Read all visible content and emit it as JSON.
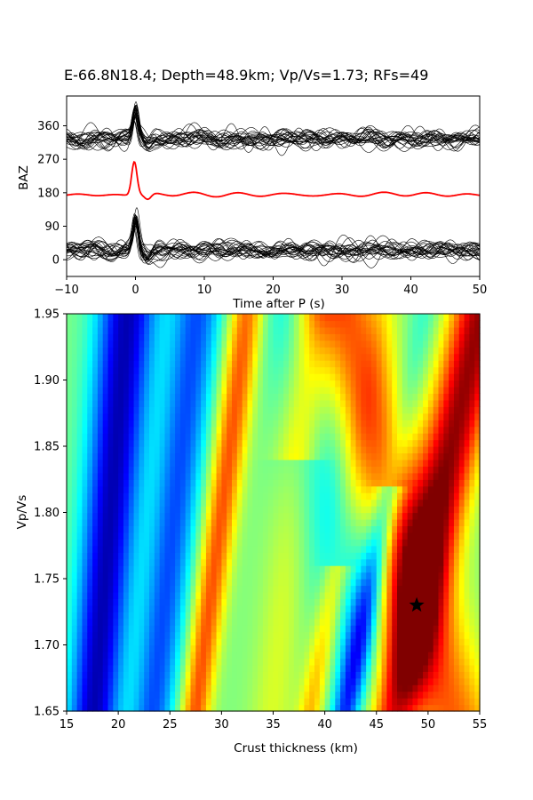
{
  "chart_data": [
    {
      "type": "line",
      "title": "E-66.8N18.4; Depth=48.9km; Vp/Vs=1.73; RFs=49",
      "xlabel": "Time after P (s)",
      "ylabel": "BAZ",
      "xlim": [
        -10,
        50
      ],
      "ylim": [
        -45,
        440
      ],
      "x_ticks": [
        -10,
        0,
        10,
        20,
        30,
        40,
        50
      ],
      "y_ticks": [
        0,
        90,
        180,
        270,
        360
      ],
      "traces": [
        {
          "name": "",
          "count": 24,
          "baseline": 325,
          "pulse_time": 0,
          "pulse_amplitude": 75,
          "color": "#000000"
        },
        {
          "name": "",
          "count": 1,
          "baseline": 175,
          "pulse_time": 0,
          "pulse_amplitude": 90,
          "color": "#ff0000"
        },
        {
          "name": "",
          "count": 24,
          "baseline": 25,
          "pulse_time": 0,
          "pulse_amplitude": 95,
          "color": "#000000"
        }
      ],
      "grid": false
    },
    {
      "type": "heatmap",
      "xlabel": "Crust thickness (km)",
      "ylabel": "Vp/Vs",
      "xlim": [
        15,
        55
      ],
      "ylim": [
        1.65,
        1.95
      ],
      "x_ticks": [
        15,
        20,
        25,
        30,
        35,
        40,
        45,
        50,
        55
      ],
      "y_ticks": [
        1.65,
        1.7,
        1.75,
        1.8,
        1.85,
        1.9,
        1.95
      ],
      "colormap": "jet",
      "max_marker": {
        "symbol": "star",
        "x": 48.9,
        "y": 1.73
      },
      "grid": false
    }
  ],
  "colors": {
    "trace": "#000000",
    "stack": "#ff0000",
    "star": "#000000"
  }
}
